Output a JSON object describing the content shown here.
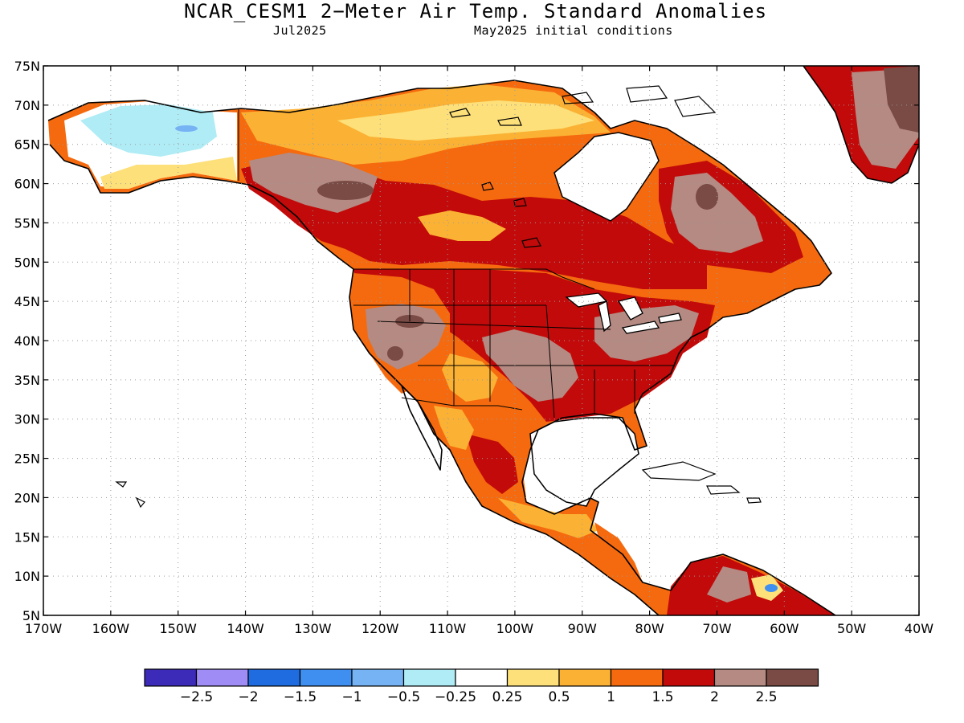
{
  "header": {
    "title": "NCAR_CESM1 2−Meter Air Temp. Standard Anomalies",
    "valid_month": "Jul2025",
    "init_conditions": "May2025 initial conditions"
  },
  "map": {
    "lon_labels": [
      "170W",
      "160W",
      "150W",
      "140W",
      "130W",
      "120W",
      "110W",
      "100W",
      "90W",
      "80W",
      "70W",
      "60W",
      "50W",
      "40W"
    ],
    "lat_labels": [
      "75N",
      "70N",
      "65N",
      "60N",
      "55N",
      "50N",
      "45N",
      "40N",
      "35N",
      "30N",
      "25N",
      "20N",
      "15N",
      "10N",
      "5N"
    ],
    "extent": {
      "lon_min": -170,
      "lon_max": -40,
      "lat_min": 5,
      "lat_max": 75
    }
  },
  "colorbar": {
    "colors": [
      "#3b2bb8",
      "#a08cf5",
      "#1f6ce0",
      "#3f8ff0",
      "#76b3f5",
      "#b0ecf5",
      "#ffffff",
      "#fde07a",
      "#fbb234",
      "#f56a0e",
      "#c20a0a",
      "#b48a82",
      "#7a4a44"
    ],
    "tick_labels": [
      "−2.5",
      "−2",
      "−1.5",
      "−1",
      "−0.5",
      "−0.25",
      "0.25",
      "0.5",
      "1",
      "1.5",
      "2",
      "2.5"
    ]
  }
}
